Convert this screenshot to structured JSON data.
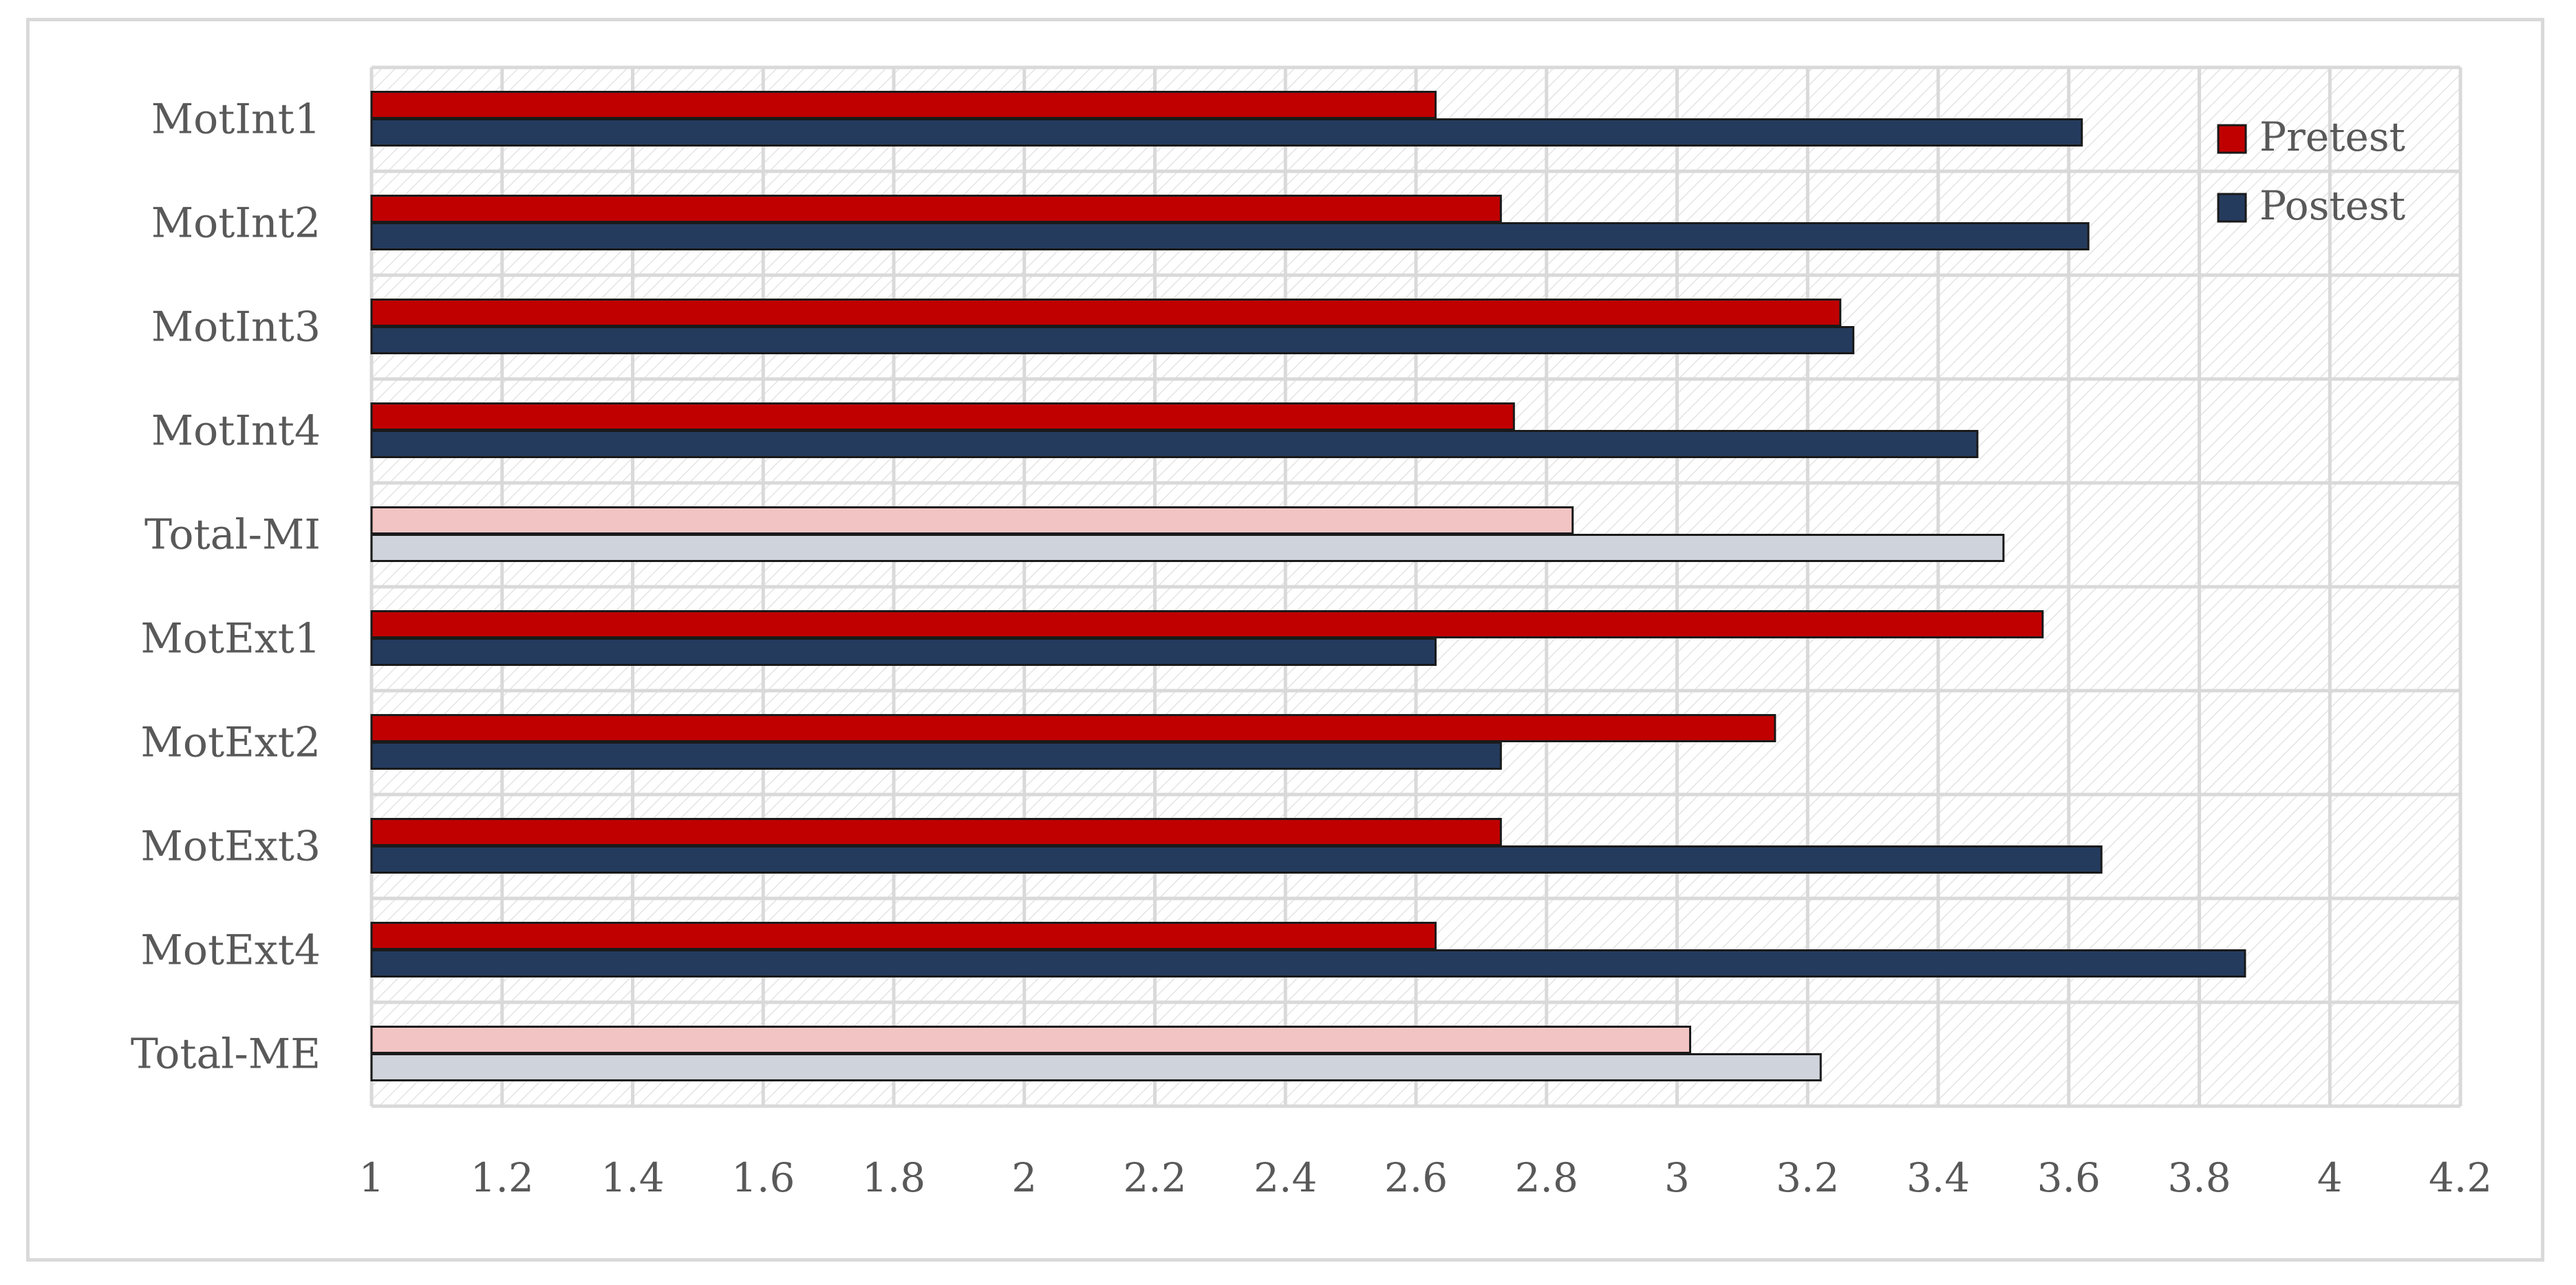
{
  "chart_data": {
    "type": "bar",
    "orientation": "horizontal",
    "categories": [
      "MotInt1",
      "MotInt2",
      "MotInt3",
      "MotInt4",
      "Total-MI",
      "MotExt1",
      "MotExt2",
      "MotExt3",
      "MotExt4",
      "Total-ME"
    ],
    "series": [
      {
        "name": "Pretest",
        "color": "#c00000",
        "values": [
          2.63,
          2.73,
          3.25,
          2.75,
          2.84,
          3.56,
          3.15,
          2.73,
          2.63,
          3.02
        ]
      },
      {
        "name": "Postest",
        "color": "#243b5e",
        "values": [
          3.62,
          3.63,
          3.27,
          3.46,
          3.5,
          2.63,
          2.73,
          3.65,
          3.87,
          3.22
        ]
      }
    ],
    "highlight_categories": [
      "Total-MI",
      "Total-ME"
    ],
    "highlight_colors": {
      "Pretest": "#f2c4c4",
      "Postest": "#cfd4dc"
    },
    "xlim": [
      1,
      4.2
    ],
    "xticks": [
      "1",
      "1.2",
      "1.4",
      "1.6",
      "1.8",
      "2",
      "2.2",
      "2.4",
      "2.6",
      "2.8",
      "3",
      "3.2",
      "3.4",
      "3.6",
      "3.8",
      "4",
      "4.2"
    ],
    "title": "",
    "xlabel": "",
    "ylabel": "",
    "grid": true,
    "legend_position": "top-right"
  }
}
